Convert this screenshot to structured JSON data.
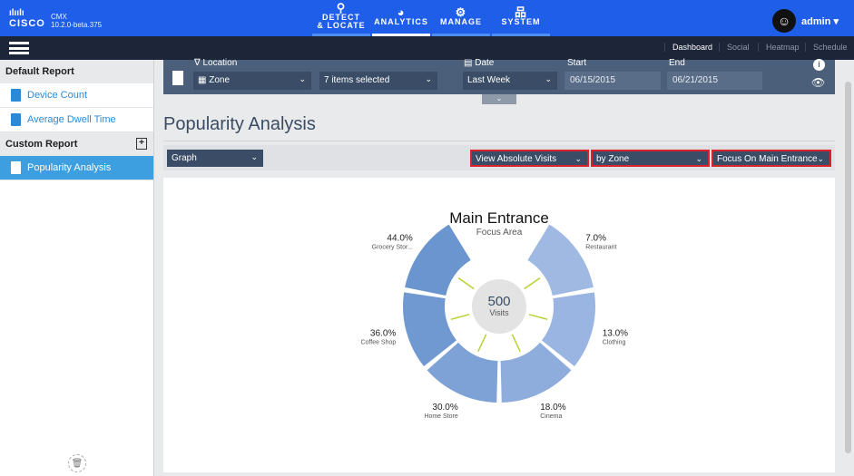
{
  "header": {
    "brand": "CISCO",
    "product": "CMX",
    "version": "10.2.0-beta.375",
    "nav": [
      {
        "label1": "DETECT",
        "label2": "& LOCATE",
        "icon": "map-pin-icon"
      },
      {
        "label1": "ANALYTICS",
        "label2": "",
        "icon": "dashboard-gauge-icon"
      },
      {
        "label1": "MANAGE",
        "label2": "",
        "icon": "gears-icon"
      },
      {
        "label1": "SYSTEM",
        "label2": "",
        "icon": "hierarchy-icon"
      }
    ],
    "user": "admin"
  },
  "subnav": [
    "Dashboard",
    "Social",
    "Heatmap",
    "Schedule"
  ],
  "sidebar": {
    "default_title": "Default Report",
    "default_items": [
      "Device Count",
      "Average Dwell Time"
    ],
    "custom_title": "Custom Report",
    "custom_items": [
      "Popularity Analysis"
    ]
  },
  "filters": {
    "location_label": "Location",
    "location_type": "Zone",
    "items": "7 items selected",
    "date_label": "Date",
    "date_value": "Last Week",
    "start_label": "Start",
    "start": "06/15/2015",
    "end_label": "End",
    "end": "06/21/2015"
  },
  "page_title": "Popularity Analysis",
  "controls": {
    "view": "Graph",
    "measure": "View Absolute Visits",
    "group": "by Zone",
    "focus": "Focus On Main Entrance"
  },
  "colors": {
    "header": "#1f5ee8",
    "highlight": "#d9222a",
    "connector": "#b5d334"
  },
  "chart_data": {
    "type": "pie",
    "title": "Main Entrance",
    "subtitle": "Focus Area",
    "center_value": "500",
    "center_label": "Visits",
    "slices": [
      {
        "label": "Restaurant",
        "value": "7.0%",
        "color": "#9fb9e3"
      },
      {
        "label": "Clothing",
        "value": "13.0%",
        "color": "#9ab5e1"
      },
      {
        "label": "Cinema",
        "value": "18.0%",
        "color": "#8eaddc"
      },
      {
        "label": "Home Store",
        "value": "30.0%",
        "color": "#7ea1d6"
      },
      {
        "label": "Coffee Shop",
        "value": "36.0%",
        "color": "#7099d1"
      },
      {
        "label": "Grocery Stor...",
        "value": "44.0%",
        "color": "#6b95cf"
      }
    ]
  }
}
